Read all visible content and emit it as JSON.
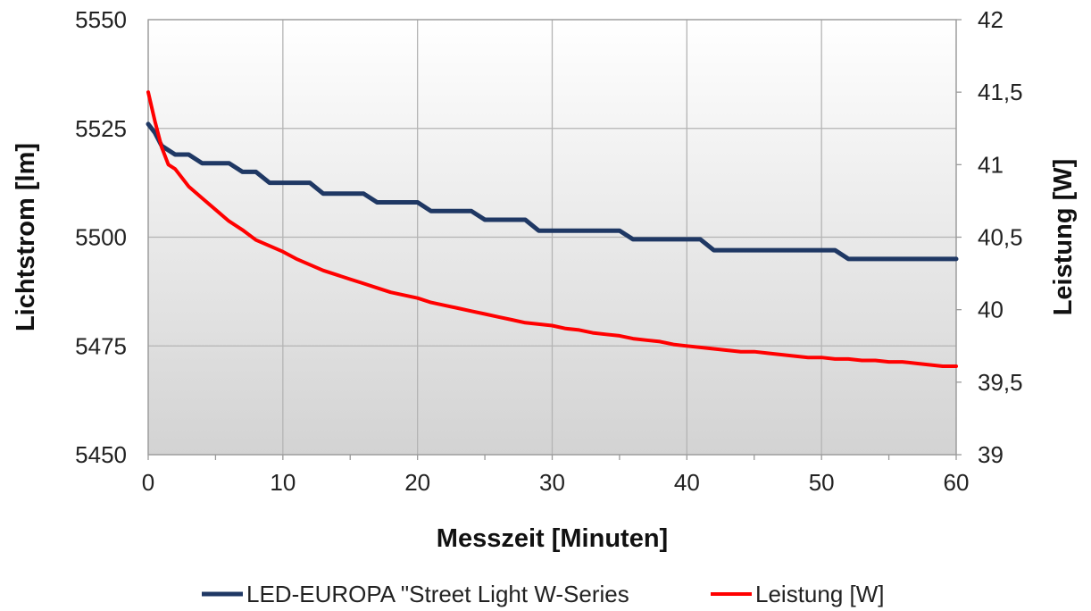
{
  "chart_data": {
    "type": "line",
    "xlabel": "Messzeit [Minuten]",
    "ylabel_left": "Lichtstrom [lm]",
    "ylabel_right": "Leistung [W]",
    "xlim": [
      0,
      60
    ],
    "x_ticks": [
      0,
      10,
      20,
      30,
      40,
      50,
      60
    ],
    "x_tick_labels": [
      "0",
      "10",
      "20",
      "30",
      "40",
      "50",
      "60"
    ],
    "ylim_left": [
      5450,
      5550
    ],
    "y_left_ticks": [
      5450,
      5475,
      5500,
      5525,
      5550
    ],
    "y_left_tick_labels": [
      "5450",
      "5475",
      "5500",
      "5525",
      "5550"
    ],
    "ylim_right": [
      39,
      42
    ],
    "y_right_ticks": [
      39,
      39.5,
      40,
      40.5,
      41,
      41.5,
      42
    ],
    "y_right_tick_labels": [
      "39",
      "39,5",
      "40",
      "40,5",
      "41",
      "41,5",
      "42"
    ],
    "grid": true,
    "legend_position": "bottom",
    "colors": {
      "luminous_flux": "#1f3864",
      "power": "#ff0000",
      "plot_bg_top": "#ffffff",
      "plot_bg_bottom": "#d3d3d3"
    },
    "series": [
      {
        "name": "LED-EUROPA \"Street Light W-Series",
        "axis": "left",
        "x": [
          0,
          0.5,
          1,
          1.5,
          2,
          3,
          4,
          5,
          6,
          7,
          8,
          9,
          10,
          11,
          12,
          13,
          14,
          15,
          16,
          17,
          18,
          19,
          20,
          21,
          22,
          23,
          24,
          25,
          26,
          27,
          28,
          29,
          30,
          31,
          32,
          33,
          34,
          35,
          36,
          37,
          38,
          39,
          40,
          41,
          42,
          43,
          44,
          45,
          46,
          47,
          48,
          49,
          50,
          51,
          52,
          53,
          54,
          55,
          56,
          57,
          58,
          59,
          60
        ],
        "values": [
          5526,
          5524,
          5521,
          5520,
          5519,
          5519,
          5517,
          5517,
          5517,
          5515,
          5515,
          5512.5,
          5512.5,
          5512.5,
          5512.5,
          5510,
          5510,
          5510,
          5510,
          5508,
          5508,
          5508,
          5508,
          5506,
          5506,
          5506,
          5506,
          5504,
          5504,
          5504,
          5504,
          5501.5,
          5501.5,
          5501.5,
          5501.5,
          5501.5,
          5501.5,
          5501.5,
          5499.5,
          5499.5,
          5499.5,
          5499.5,
          5499.5,
          5499.5,
          5497,
          5497,
          5497,
          5497,
          5497,
          5497,
          5497,
          5497,
          5497,
          5497,
          5495,
          5495,
          5495,
          5495,
          5495,
          5495,
          5495,
          5495,
          5495
        ]
      },
      {
        "name": "Leistung [W]",
        "axis": "right",
        "x": [
          0,
          0.5,
          1,
          1.5,
          2,
          3,
          4,
          5,
          6,
          7,
          8,
          9,
          10,
          11,
          12,
          13,
          14,
          15,
          16,
          17,
          18,
          19,
          20,
          21,
          22,
          23,
          24,
          25,
          26,
          27,
          28,
          29,
          30,
          31,
          32,
          33,
          34,
          35,
          36,
          37,
          38,
          39,
          40,
          41,
          42,
          43,
          44,
          45,
          46,
          47,
          48,
          49,
          50,
          51,
          52,
          53,
          54,
          55,
          56,
          57,
          58,
          59,
          60
        ],
        "values": [
          41.5,
          41.3,
          41.12,
          41.0,
          40.97,
          40.85,
          40.77,
          40.69,
          40.61,
          40.55,
          40.48,
          40.44,
          40.4,
          40.35,
          40.31,
          40.27,
          40.24,
          40.21,
          40.18,
          40.15,
          40.12,
          40.1,
          40.08,
          40.05,
          40.03,
          40.01,
          39.99,
          39.97,
          39.95,
          39.93,
          39.91,
          39.9,
          39.89,
          39.87,
          39.86,
          39.84,
          39.83,
          39.82,
          39.8,
          39.79,
          39.78,
          39.76,
          39.75,
          39.74,
          39.73,
          39.72,
          39.71,
          39.71,
          39.7,
          39.69,
          39.68,
          39.67,
          39.67,
          39.66,
          39.66,
          39.65,
          39.65,
          39.64,
          39.64,
          39.63,
          39.62,
          39.61,
          39.61
        ]
      }
    ]
  }
}
